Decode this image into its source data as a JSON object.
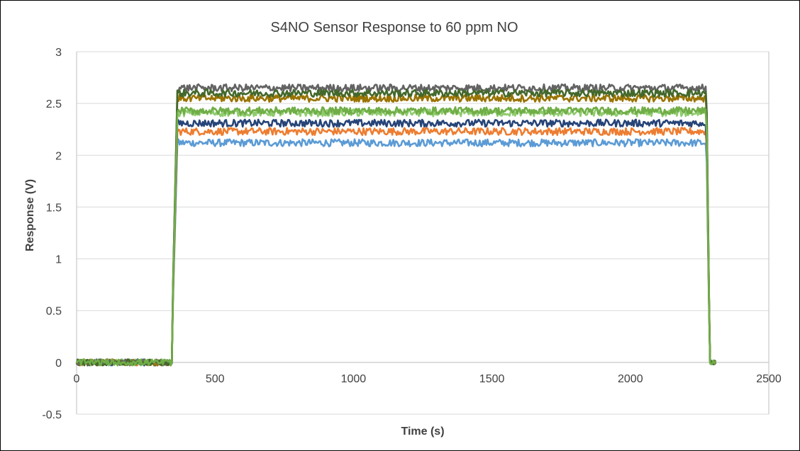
{
  "chart_data": {
    "type": "line",
    "title": "S4NO Sensor Response to    60 ppm NO",
    "xlabel": "Time (s)",
    "ylabel": "Response (V)",
    "xlim": [
      0,
      2500
    ],
    "ylim": [
      -0.5,
      3
    ],
    "x_ticks": [
      "0",
      "500",
      "1000",
      "1500",
      "2000",
      "2500"
    ],
    "y_ticks": [
      "3",
      "2.5",
      "2",
      "1.5",
      "1",
      "0.5",
      "0",
      "-0.5"
    ],
    "grid": "horizontal",
    "legend": "none",
    "step": {
      "on": 345,
      "off": 2275,
      "end": 2310
    },
    "series": [
      {
        "color": "#5B9BD5",
        "baseline": 0.0,
        "plateau": 2.12
      },
      {
        "color": "#ED7D31",
        "baseline": 0.0,
        "plateau": 2.23
      },
      {
        "color": "#264478",
        "baseline": 0.0,
        "plateau": 2.31
      },
      {
        "color": "#8FCB6E",
        "baseline": 0.0,
        "plateau": 2.41
      },
      {
        "color": "#997300",
        "baseline": 0.0,
        "plateau": 2.55
      },
      {
        "color": "#636363",
        "baseline": 0.0,
        "plateau": 2.65
      },
      {
        "color": "#43682B",
        "baseline": 0.0,
        "plateau": 2.6
      },
      {
        "color": "#70AD47",
        "baseline": 0.0,
        "plateau": 2.43
      }
    ]
  }
}
